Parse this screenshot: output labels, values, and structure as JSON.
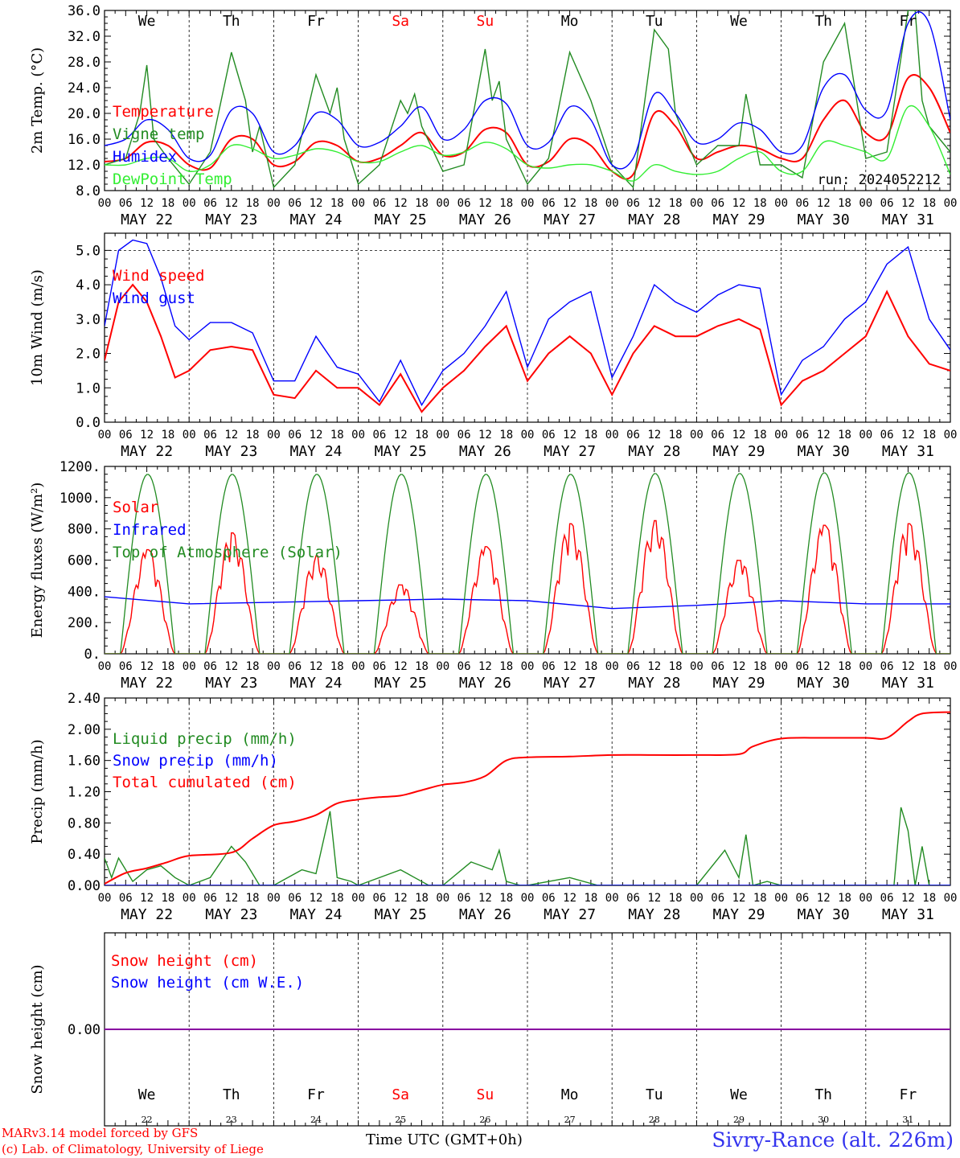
{
  "meta": {
    "footer_model": "MARv3.14 model forced by GFS",
    "footer_lab": "(c) Lab. of Climatology, University of Liege",
    "x_title": "Time UTC (GMT+0h)",
    "station": "Sivry-Rance (alt. 226m)",
    "run": "run: 2024052212"
  },
  "days": {
    "names": [
      "We",
      "Th",
      "Fr",
      "Sa",
      "Su",
      "Mo",
      "Tu",
      "We",
      "Th",
      "Fr"
    ],
    "weekend": [
      false,
      false,
      false,
      true,
      true,
      false,
      false,
      false,
      false,
      false
    ],
    "dates": [
      "MAY 22",
      "MAY 23",
      "MAY 24",
      "MAY 25",
      "MAY 26",
      "MAY 27",
      "MAY 28",
      "MAY 29",
      "MAY 30",
      "MAY 31"
    ],
    "day_numbers": [
      "22",
      "23",
      "24",
      "25",
      "26",
      "27",
      "28",
      "29",
      "30",
      "31"
    ],
    "hour_ticks": [
      "00",
      "06",
      "12",
      "18"
    ],
    "end_tick": "00"
  },
  "colors": {
    "red": "#ff0000",
    "green": "#228b22",
    "blue": "#0000ff",
    "lime": "#33ee33",
    "purple": "#8b00aa",
    "weekend": "#ff0000"
  },
  "chart_data": [
    {
      "id": "temperature",
      "type": "line",
      "ylabel": "2m Temp. (°C)",
      "ylim": [
        8,
        36
      ],
      "yticks": [
        "8.0",
        "12.0",
        "16.0",
        "20.0",
        "24.0",
        "28.0",
        "32.0",
        "36.0"
      ],
      "x_unit": "hours since MAY 22 00 UTC",
      "series": [
        {
          "name": "Temperature",
          "color": "red",
          "x": [
            0,
            6,
            12,
            18,
            24,
            30,
            36,
            42,
            48,
            54,
            60,
            66,
            72,
            78,
            84,
            90,
            96,
            102,
            108,
            114,
            120,
            126,
            132,
            138,
            144,
            150,
            156,
            162,
            168,
            174,
            180,
            186,
            192,
            198,
            204,
            210,
            216,
            222,
            228,
            234,
            240
          ],
          "y": [
            12.5,
            13,
            15.5,
            15,
            12,
            11.5,
            16,
            16,
            12,
            12.5,
            15.5,
            15,
            12.5,
            13,
            15,
            17,
            13.5,
            14,
            17.5,
            17,
            12,
            12.5,
            16,
            15,
            11,
            10.5,
            20,
            18,
            13,
            14,
            15,
            14.5,
            13,
            13,
            19,
            22,
            17,
            16.5,
            25.5,
            24,
            17
          ]
        },
        {
          "name": "Vigne temp",
          "color": "green",
          "x": [
            0,
            6,
            10,
            12,
            14,
            18,
            24,
            30,
            36,
            40,
            42,
            44,
            48,
            54,
            60,
            64,
            66,
            68,
            72,
            78,
            84,
            86,
            88,
            90,
            96,
            102,
            108,
            110,
            112,
            114,
            120,
            126,
            132,
            138,
            144,
            150,
            156,
            160,
            162,
            168,
            174,
            180,
            182,
            186,
            192,
            198,
            204,
            210,
            216,
            222,
            228,
            230,
            232,
            234,
            240
          ],
          "y": [
            12,
            13,
            20,
            27.5,
            16,
            13,
            9,
            14,
            29.5,
            22,
            14,
            18,
            8.5,
            12,
            26,
            20,
            24,
            16,
            9,
            12,
            22,
            20,
            23,
            18,
            11,
            12,
            30,
            22,
            25,
            16,
            9,
            13,
            29.5,
            22,
            12,
            8.5,
            33,
            30,
            20,
            12,
            15,
            15,
            23,
            12,
            12,
            10,
            28,
            34,
            13,
            14,
            36,
            36,
            22,
            18,
            14
          ]
        },
        {
          "name": "Humidex",
          "color": "blue",
          "x": [
            0,
            6,
            12,
            18,
            24,
            30,
            36,
            42,
            48,
            54,
            60,
            66,
            72,
            78,
            84,
            90,
            96,
            102,
            108,
            114,
            120,
            126,
            132,
            138,
            144,
            150,
            156,
            162,
            168,
            174,
            180,
            186,
            192,
            198,
            204,
            210,
            216,
            222,
            228,
            234,
            240
          ],
          "y": [
            15,
            16,
            19,
            17.5,
            13,
            13.5,
            20.5,
            20,
            14,
            15,
            20,
            19,
            15,
            15.5,
            18,
            21,
            16,
            17.5,
            22,
            21.5,
            15,
            15.5,
            21,
            19,
            12,
            13,
            23,
            20,
            15.5,
            16,
            18.5,
            17.5,
            14,
            15,
            24,
            26,
            20.5,
            20.5,
            34,
            34,
            19
          ]
        },
        {
          "name": "DewPoint Temp",
          "color": "lime",
          "x": [
            0,
            6,
            12,
            18,
            24,
            30,
            36,
            42,
            48,
            54,
            60,
            66,
            72,
            78,
            84,
            90,
            96,
            102,
            108,
            114,
            120,
            126,
            132,
            138,
            144,
            150,
            156,
            162,
            168,
            174,
            180,
            186,
            192,
            198,
            204,
            210,
            216,
            222,
            228,
            234,
            240
          ],
          "y": [
            12,
            12,
            13,
            13,
            11,
            12,
            15,
            14.5,
            13,
            13.5,
            14.5,
            14,
            12.5,
            12.5,
            14,
            15,
            13.5,
            14,
            15.5,
            14.5,
            12,
            11.5,
            12,
            12,
            11,
            9.5,
            12,
            11,
            10.5,
            11,
            13,
            14,
            11,
            11,
            15.5,
            15,
            14,
            13,
            21,
            18,
            10.5
          ]
        }
      ]
    },
    {
      "id": "wind",
      "type": "line",
      "ylabel": "10m Wind (m/s)",
      "ylim": [
        0,
        5.5
      ],
      "yticks": [
        "0.0",
        "1.0",
        "2.0",
        "3.0",
        "4.0",
        "5.0"
      ],
      "x_unit": "hours since MAY 22 00 UTC",
      "series": [
        {
          "name": "Wind speed",
          "color": "red",
          "x": [
            0,
            4,
            8,
            12,
            16,
            20,
            24,
            30,
            36,
            42,
            48,
            54,
            60,
            66,
            72,
            78,
            84,
            90,
            96,
            102,
            108,
            114,
            120,
            126,
            132,
            138,
            144,
            150,
            156,
            162,
            168,
            174,
            180,
            186,
            192,
            198,
            204,
            210,
            216,
            222,
            228,
            234,
            240
          ],
          "y": [
            1.8,
            3.5,
            4,
            3.5,
            2.5,
            1.3,
            1.5,
            2.1,
            2.2,
            2.1,
            0.8,
            0.7,
            1.5,
            1.0,
            1.0,
            0.5,
            1.4,
            0.3,
            1.0,
            1.5,
            2.2,
            2.8,
            1.2,
            2.0,
            2.5,
            2.0,
            0.8,
            2.0,
            2.8,
            2.5,
            2.5,
            2.8,
            3.0,
            2.7,
            0.5,
            1.2,
            1.5,
            2.0,
            2.5,
            3.8,
            2.5,
            1.7,
            1.5
          ]
        },
        {
          "name": "Wind gust",
          "color": "blue",
          "x": [
            0,
            4,
            8,
            12,
            16,
            20,
            24,
            30,
            36,
            42,
            48,
            54,
            60,
            66,
            72,
            78,
            84,
            90,
            96,
            102,
            108,
            114,
            120,
            126,
            132,
            138,
            144,
            150,
            156,
            162,
            168,
            174,
            180,
            186,
            192,
            198,
            204,
            210,
            216,
            222,
            228,
            234,
            240
          ],
          "y": [
            2.8,
            5.0,
            5.3,
            5.2,
            4.2,
            2.8,
            2.4,
            2.9,
            2.9,
            2.6,
            1.2,
            1.2,
            2.5,
            1.6,
            1.4,
            0.6,
            1.8,
            0.5,
            1.5,
            2.0,
            2.8,
            3.8,
            1.6,
            3.0,
            3.5,
            3.8,
            1.3,
            2.5,
            4.0,
            3.5,
            3.2,
            3.7,
            4.0,
            3.9,
            0.8,
            1.8,
            2.2,
            3.0,
            3.5,
            4.6,
            5.1,
            3.0,
            2.1
          ]
        }
      ]
    },
    {
      "id": "energy",
      "type": "line",
      "ylabel": "Energy fluxes (W/m²)",
      "ylim": [
        0,
        1200
      ],
      "yticks": [
        "0.",
        "200.",
        "400.",
        "600.",
        "800.",
        "1000.",
        "1200."
      ],
      "x_unit": "hours since MAY 22 00 UTC",
      "series": [
        {
          "name": "Solar",
          "color": "red",
          "peaks": [
            680,
            790,
            640,
            450,
            700,
            850,
            870,
            610,
            840,
            850
          ]
        },
        {
          "name": "Infrared",
          "color": "blue",
          "x": [
            0,
            24,
            48,
            72,
            96,
            120,
            144,
            168,
            192,
            216,
            240
          ],
          "y": [
            365,
            320,
            330,
            340,
            350,
            340,
            290,
            310,
            340,
            320,
            320
          ]
        },
        {
          "name": "Top of Atmosphere (Solar)",
          "color": "green",
          "peaks": [
            1150,
            1150,
            1150,
            1150,
            1150,
            1150,
            1155,
            1155,
            1160,
            1160
          ]
        }
      ]
    },
    {
      "id": "precip",
      "type": "line",
      "ylabel": "Precip (mm/h)",
      "ylim": [
        0,
        2.4
      ],
      "yticks": [
        "0.00",
        "0.40",
        "0.80",
        "1.20",
        "1.60",
        "2.00",
        "2.40"
      ],
      "x_unit": "hours since MAY 22 00 UTC",
      "series": [
        {
          "name": "Liquid precip (mm/h)",
          "color": "green",
          "x": [
            0,
            2,
            4,
            8,
            12,
            16,
            20,
            24,
            30,
            36,
            40,
            44,
            48,
            56,
            60,
            64,
            66,
            70,
            72,
            84,
            88,
            92,
            96,
            104,
            110,
            112,
            114,
            118,
            120,
            132,
            140,
            144,
            168,
            176,
            180,
            182,
            184,
            188,
            192,
            204,
            216,
            224,
            226,
            228,
            230,
            232,
            234,
            240
          ],
          "y": [
            0.35,
            0.1,
            0.35,
            0.05,
            0.2,
            0.25,
            0.1,
            0,
            0.1,
            0.5,
            0.3,
            0,
            0,
            0.2,
            0.15,
            0.95,
            0.1,
            0.05,
            0,
            0.2,
            0.1,
            0,
            0,
            0.3,
            0.2,
            0.45,
            0.05,
            0,
            0,
            0.1,
            0,
            0,
            0,
            0.45,
            0.1,
            0.65,
            0,
            0.05,
            0,
            0,
            0,
            0,
            1.0,
            0.7,
            0,
            0.5,
            0,
            0
          ]
        },
        {
          "name": "Snow precip (mm/h)",
          "color": "blue",
          "x": [
            0,
            240
          ],
          "y": [
            0,
            0
          ]
        },
        {
          "name": "Total cumulated (cm)",
          "color": "red",
          "x": [
            0,
            6,
            12,
            18,
            24,
            36,
            42,
            48,
            54,
            60,
            66,
            72,
            78,
            84,
            90,
            96,
            102,
            108,
            114,
            120,
            132,
            144,
            156,
            168,
            180,
            184,
            192,
            204,
            216,
            222,
            228,
            232,
            240
          ],
          "y": [
            0.02,
            0.16,
            0.22,
            0.3,
            0.38,
            0.42,
            0.6,
            0.77,
            0.82,
            0.9,
            1.05,
            1.1,
            1.13,
            1.15,
            1.22,
            1.29,
            1.32,
            1.4,
            1.6,
            1.64,
            1.65,
            1.67,
            1.67,
            1.67,
            1.68,
            1.78,
            1.88,
            1.89,
            1.89,
            1.89,
            2.1,
            2.2,
            2.22
          ]
        }
      ]
    },
    {
      "id": "snow",
      "type": "line",
      "ylabel": "Snow height (cm)",
      "ylim": [
        -1,
        1
      ],
      "yticks": [
        "0.00"
      ],
      "x_unit": "hours since MAY 22 00 UTC",
      "series": [
        {
          "name": "Snow height (cm)",
          "color": "red",
          "x": [
            0,
            240
          ],
          "y": [
            0,
            0
          ]
        },
        {
          "name": "Snow height (cm W.E.)",
          "color": "blue",
          "x": [
            0,
            240
          ],
          "y": [
            0,
            0
          ]
        }
      ]
    }
  ]
}
